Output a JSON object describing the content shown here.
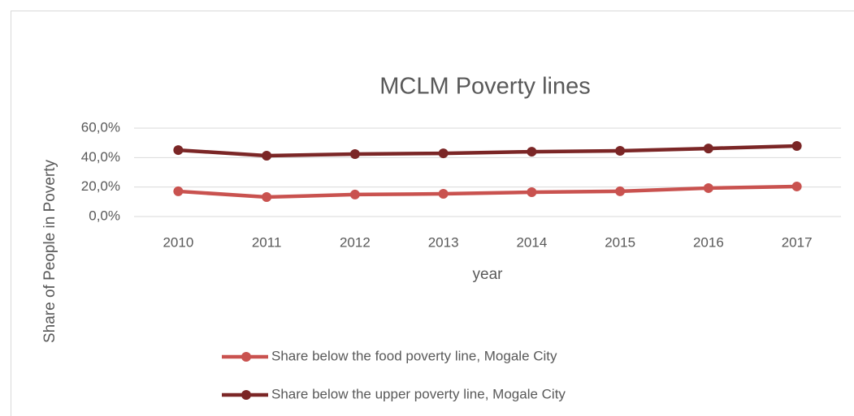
{
  "chart_data": {
    "type": "line",
    "title": "MCLM Poverty lines",
    "x_label": "year",
    "y_label": "Share of People in Poverty",
    "categories": [
      "2010",
      "2011",
      "2012",
      "2013",
      "2014",
      "2015",
      "2016",
      "2017"
    ],
    "series": [
      {
        "name": "Share below the food poverty line, Mogale City",
        "color": "#c9524f",
        "values": [
          17.1,
          13.2,
          14.9,
          15.4,
          16.5,
          17.1,
          19.3,
          20.4
        ]
      },
      {
        "name": "Share below the upper poverty line, Mogale City",
        "color": "#7b2626",
        "values": [
          45.1,
          41.3,
          42.4,
          42.9,
          44.0,
          44.6,
          46.2,
          47.9
        ]
      }
    ],
    "ylim": [
      0,
      60
    ],
    "yticks": [
      {
        "value": 0,
        "label": "0,0%"
      },
      {
        "value": 20,
        "label": "20,0%"
      },
      {
        "value": 40,
        "label": "40,0%"
      },
      {
        "value": 60,
        "label": "60,0%"
      }
    ],
    "grid": true,
    "legend": "bottom"
  }
}
